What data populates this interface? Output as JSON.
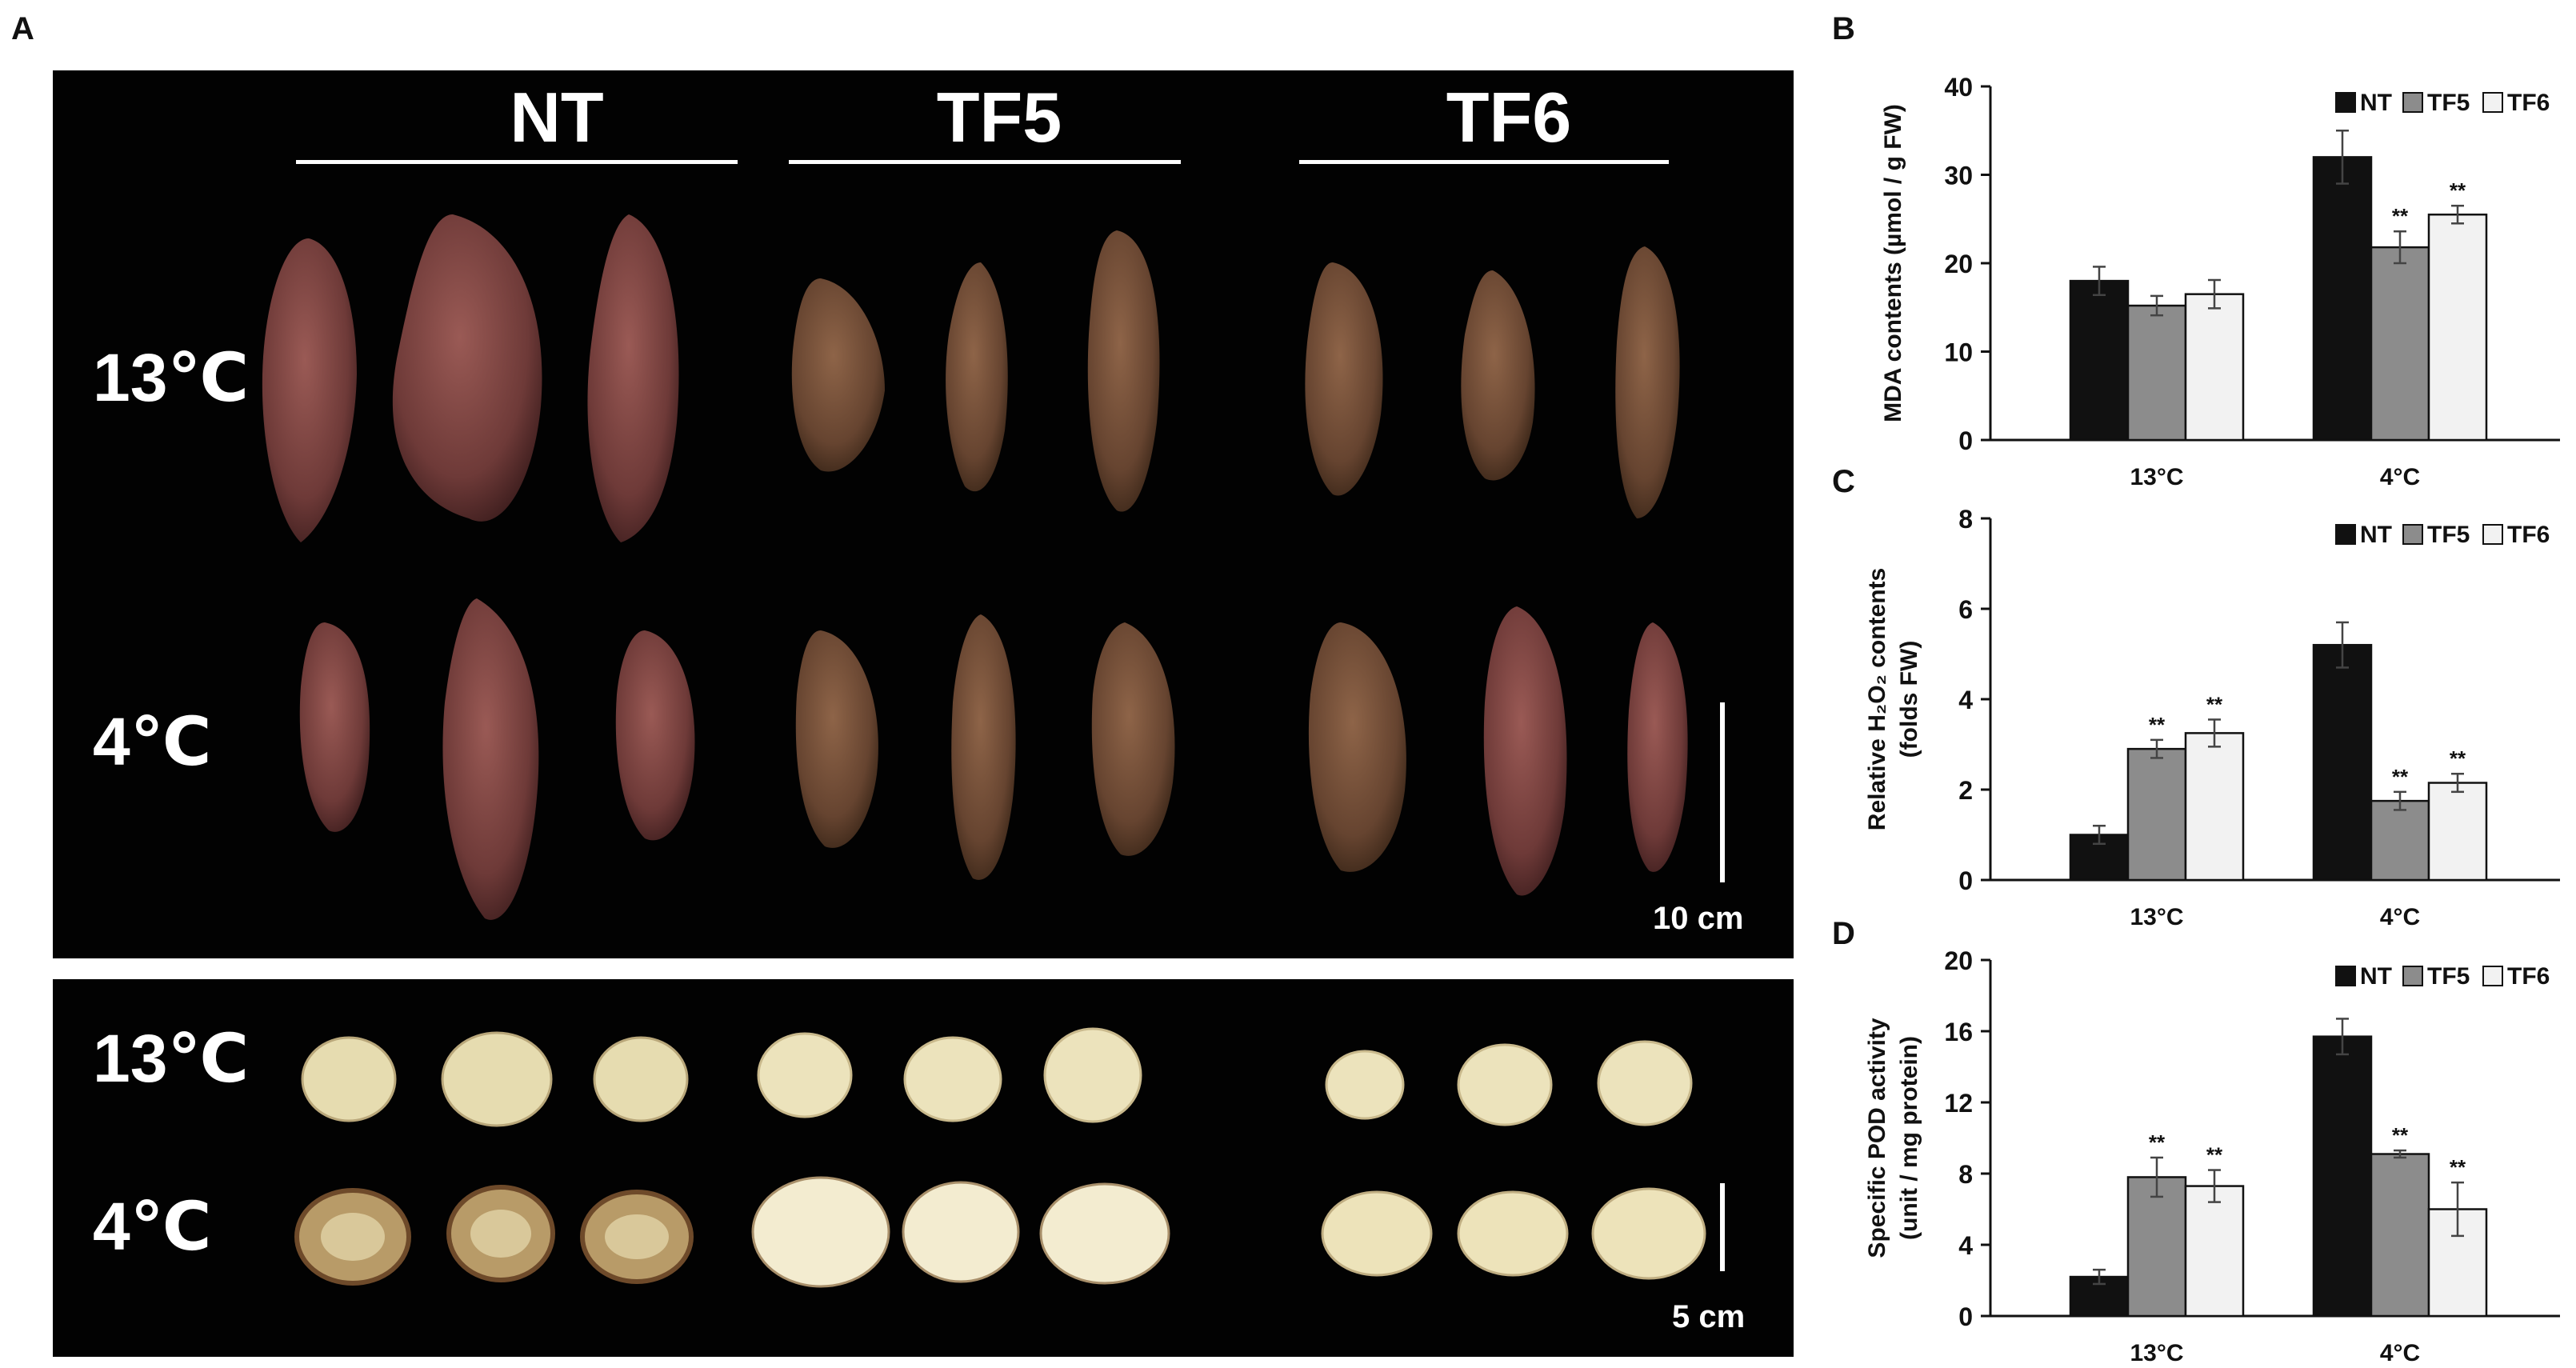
{
  "panel_labels": {
    "a": "A",
    "b": "B",
    "c": "C",
    "d": "D"
  },
  "photo": {
    "genotypes": [
      "NT",
      "TF5",
      "TF6"
    ],
    "temperatures": [
      "13℃",
      "4℃"
    ],
    "scale_top": "10 cm",
    "scale_bottom": "5 cm"
  },
  "colors": {
    "NT": "#111111",
    "TF5": "#8c8c8c",
    "TF6": "#f2f2f2",
    "photo_bg": "#020202"
  },
  "significance_marker": "**",
  "chart_data": [
    {
      "panel": "B",
      "type": "bar",
      "categories": [
        "13°C",
        "4°C"
      ],
      "ylabel": "MDA contents (µmol / g FW)",
      "ylim": [
        0,
        40
      ],
      "yticks": [
        0,
        10,
        20,
        30,
        40
      ],
      "legend": "top-right",
      "series": [
        {
          "name": "NT",
          "values": [
            18.0,
            32.0
          ],
          "errors": [
            1.6,
            3.0
          ],
          "sig": [
            false,
            false
          ]
        },
        {
          "name": "TF5",
          "values": [
            15.2,
            21.8
          ],
          "errors": [
            1.1,
            1.8
          ],
          "sig": [
            false,
            true
          ]
        },
        {
          "name": "TF6",
          "values": [
            16.5,
            25.5
          ],
          "errors": [
            1.6,
            1.0
          ],
          "sig": [
            false,
            true
          ]
        }
      ]
    },
    {
      "panel": "C",
      "type": "bar",
      "categories": [
        "13°C",
        "4°C"
      ],
      "ylabel": "Relative H2O2 contents (folds FW)",
      "ylabel_line1": "Relative H₂O₂ contents",
      "ylabel_line2": "(folds FW)",
      "ylim": [
        0,
        8
      ],
      "yticks": [
        0,
        2,
        4,
        6,
        8
      ],
      "legend": "top-right",
      "series": [
        {
          "name": "NT",
          "values": [
            1.0,
            5.2
          ],
          "errors": [
            0.2,
            0.5
          ],
          "sig": [
            false,
            false
          ]
        },
        {
          "name": "TF5",
          "values": [
            2.9,
            1.75
          ],
          "errors": [
            0.2,
            0.2
          ],
          "sig": [
            true,
            true
          ]
        },
        {
          "name": "TF6",
          "values": [
            3.25,
            2.15
          ],
          "errors": [
            0.3,
            0.2
          ],
          "sig": [
            true,
            true
          ]
        }
      ]
    },
    {
      "panel": "D",
      "type": "bar",
      "categories": [
        "13°C",
        "4°C"
      ],
      "ylabel": "Specific POD activity (unit / mg protein)",
      "ylabel_line1": "Specific POD activity",
      "ylabel_line2": "(unit / mg protein)",
      "ylim": [
        0,
        20
      ],
      "yticks": [
        0,
        4,
        8,
        12,
        16,
        20
      ],
      "legend": "top-right",
      "series": [
        {
          "name": "NT",
          "values": [
            2.2,
            15.7
          ],
          "errors": [
            0.4,
            1.0
          ],
          "sig": [
            false,
            false
          ]
        },
        {
          "name": "TF5",
          "values": [
            7.8,
            9.1
          ],
          "errors": [
            1.1,
            0.2
          ],
          "sig": [
            true,
            true
          ]
        },
        {
          "name": "TF6",
          "values": [
            7.3,
            6.0
          ],
          "errors": [
            0.9,
            1.5
          ],
          "sig": [
            true,
            true
          ]
        }
      ]
    }
  ]
}
